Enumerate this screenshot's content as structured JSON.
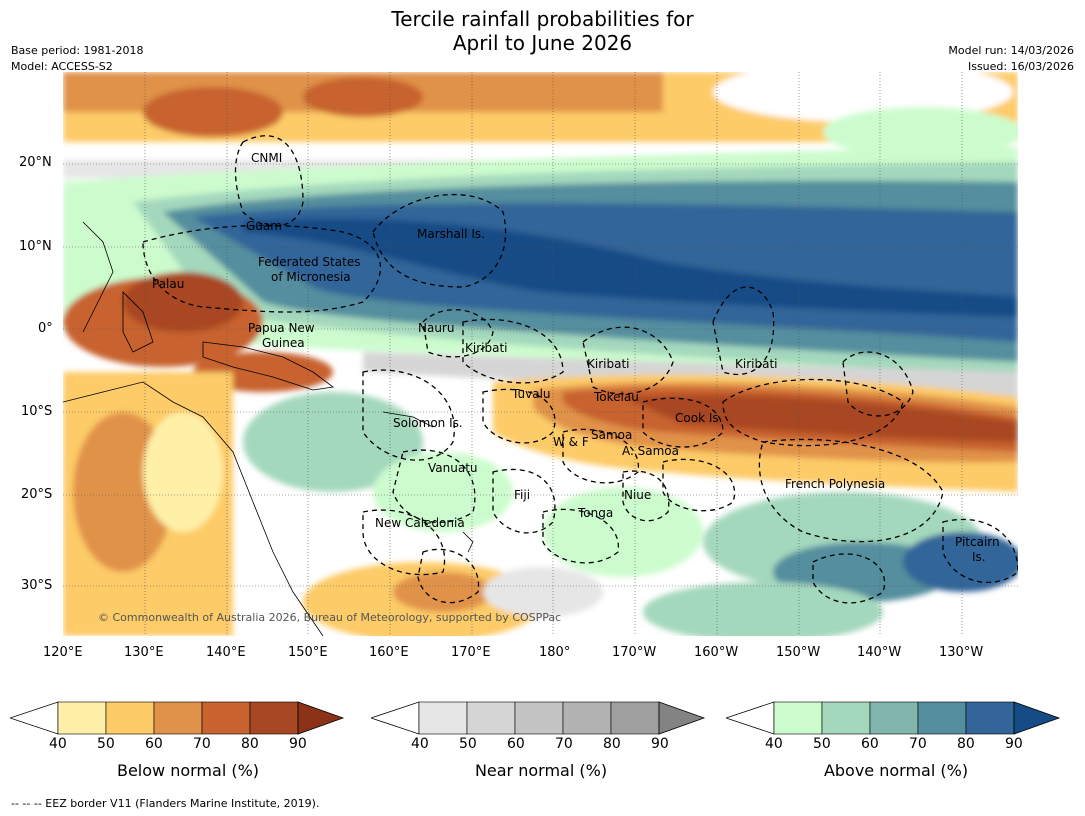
{
  "title": {
    "line1": "Tercile rainfall probabilities for",
    "line2": "April to June 2026"
  },
  "meta": {
    "base_period": "Base period: 1981-2018",
    "model": "Model: ACCESS-S2",
    "model_run": "Model run: 14/03/2026",
    "issued": "Issued: 16/03/2026"
  },
  "axes": {
    "lat_labels": [
      "20°N",
      "10°N",
      "0°",
      "10°S",
      "20°S",
      "30°S"
    ],
    "lon_labels": [
      "120°E",
      "130°E",
      "140°E",
      "150°E",
      "160°E",
      "170°E",
      "180°",
      "170°W",
      "160°W",
      "150°W",
      "140°W",
      "130°W"
    ]
  },
  "map": {
    "regions": [
      "CNMI",
      "Guam",
      "Marshall Is.",
      "Federated States",
      "of Micronesia",
      "Palau",
      "Papua New",
      "Guinea",
      "Nauru",
      "Kiribati",
      "Kiribati",
      "Kiribati",
      "Tuvalu",
      "Tokelau",
      "Cook Is.",
      "Solomon Is.",
      "W & F",
      "Samoa",
      "A. Samoa",
      "Vanuatu",
      "Fiji",
      "Niue",
      "French Polynesia",
      "Tonga",
      "New Caledonia",
      "Pitcairn",
      "Is."
    ],
    "copyright": "© Commonwealth of Australia 2026, Bureau of Meteorology, supported by COSPPac"
  },
  "colorbars": [
    {
      "title": "Below normal (%)",
      "ticks": [
        "40",
        "50",
        "60",
        "70",
        "80",
        "90"
      ],
      "low": "#ffffff",
      "colors": [
        "#fff0a8",
        "#fdcb68",
        "#e0924a",
        "#c8622f",
        "#a84724"
      ],
      "high": "#8c3219"
    },
    {
      "title": "Near normal (%)",
      "ticks": [
        "40",
        "50",
        "60",
        "70",
        "80",
        "90"
      ],
      "low": "#ffffff",
      "colors": [
        "#e6e6e6",
        "#d5d5d5",
        "#c4c4c4",
        "#b2b2b2",
        "#9f9f9f"
      ],
      "high": "#838383"
    },
    {
      "title": "Above normal (%)",
      "ticks": [
        "40",
        "50",
        "60",
        "70",
        "80",
        "90"
      ],
      "low": "#ffffff",
      "colors": [
        "#ccfccd",
        "#a4d8bd",
        "#82b5ae",
        "#548e9e",
        "#336599"
      ],
      "high": "#154c86"
    }
  ],
  "footer": "--  --  -- EEZ border V11 (Flanders Marine Institute, 2019)."
}
